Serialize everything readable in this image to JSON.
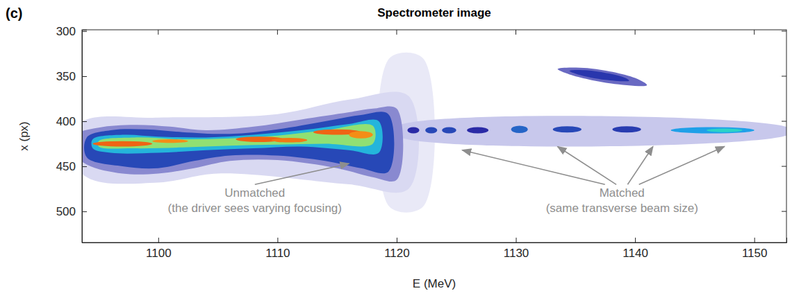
{
  "chart_data": {
    "type": "image",
    "panel": "(c)",
    "title": "Spectrometer image",
    "x_label": "E (MeV)",
    "y_label": "x (px)",
    "xlim": [
      1093.6,
      1152.7
    ],
    "xticks": [
      1100,
      1110,
      1120,
      1130,
      1140,
      1150
    ],
    "ylim": [
      534.5,
      298.5
    ],
    "yticks": [
      300,
      350,
      400,
      450,
      500
    ],
    "contours": [
      {
        "level": 0.04,
        "points": [
          [
            1119.4,
            330
          ],
          [
            1122.2,
            330
          ],
          [
            1122.2,
            495
          ],
          [
            1119.4,
            495
          ]
        ]
      },
      {
        "level": 0.07,
        "points": [
          [
            1092,
            420
          ],
          [
            1094,
            398
          ],
          [
            1100,
            396
          ],
          [
            1110,
            392
          ],
          [
            1116,
            376
          ],
          [
            1121,
            372
          ],
          [
            1121,
            475
          ],
          [
            1116,
            470
          ],
          [
            1105,
            458
          ],
          [
            1100,
            468
          ],
          [
            1094,
            462
          ]
        ]
      },
      {
        "level": 0.1,
        "points": [
          [
            1120,
            406
          ],
          [
            1153,
            408
          ],
          [
            1153,
            414
          ],
          [
            1120,
            416
          ]
        ]
      },
      {
        "level": 0.18,
        "points": [
          [
            1093,
            415
          ],
          [
            1095,
            407
          ],
          [
            1098,
            404
          ],
          [
            1101,
            406
          ],
          [
            1104,
            410
          ],
          [
            1108,
            406
          ],
          [
            1112,
            398
          ],
          [
            1116,
            390
          ],
          [
            1118,
            386
          ],
          [
            1120,
            386
          ],
          [
            1120,
            465
          ],
          [
            1118,
            462
          ],
          [
            1115,
            452
          ],
          [
            1110,
            443
          ],
          [
            1106,
            444
          ],
          [
            1103,
            452
          ],
          [
            1100,
            458
          ],
          [
            1097,
            458
          ],
          [
            1094,
            448
          ],
          [
            1092.5,
            430
          ]
        ]
      },
      {
        "level": 0.35,
        "points": [
          [
            1094,
            418
          ],
          [
            1096,
            410
          ],
          [
            1099,
            409
          ],
          [
            1102,
            412
          ],
          [
            1106,
            414
          ],
          [
            1110,
            409
          ],
          [
            1114,
            400
          ],
          [
            1117,
            393
          ],
          [
            1119.3,
            392
          ],
          [
            1119.3,
            456
          ],
          [
            1117,
            452
          ],
          [
            1114,
            444
          ],
          [
            1110,
            438
          ],
          [
            1106,
            438
          ],
          [
            1103,
            444
          ],
          [
            1100,
            452
          ],
          [
            1097,
            450
          ],
          [
            1094,
            440
          ]
        ]
      },
      {
        "level": 0.55,
        "points": [
          [
            1094.5,
            420
          ],
          [
            1097,
            415
          ],
          [
            1100,
            417
          ],
          [
            1104,
            418
          ],
          [
            1108,
            415
          ],
          [
            1112,
            410
          ],
          [
            1116,
            403
          ],
          [
            1118.5,
            400
          ],
          [
            1118.5,
            435
          ],
          [
            1116,
            432
          ],
          [
            1112,
            428
          ],
          [
            1108,
            430
          ],
          [
            1104,
            432
          ],
          [
            1100,
            435
          ],
          [
            1096,
            435
          ],
          [
            1094.5,
            430
          ]
        ]
      },
      {
        "level": 0.72,
        "points": [
          [
            1095,
            422
          ],
          [
            1098,
            418
          ],
          [
            1102,
            420
          ],
          [
            1106,
            419
          ],
          [
            1110,
            416
          ],
          [
            1114,
            410
          ],
          [
            1118,
            405
          ],
          [
            1118,
            425
          ],
          [
            1114,
            425
          ],
          [
            1110,
            426
          ],
          [
            1106,
            427
          ],
          [
            1102,
            429
          ],
          [
            1098,
            430
          ],
          [
            1095,
            428
          ]
        ]
      },
      {
        "level": 0.22,
        "points": [
          [
            1133.5,
            342
          ],
          [
            1136,
            341
          ],
          [
            1140,
            352
          ],
          [
            1141,
            360
          ],
          [
            1138,
            358
          ],
          [
            1134.5,
            348
          ]
        ]
      },
      {
        "level": 0.32,
        "points": [
          [
            1134.5,
            344
          ],
          [
            1136,
            343.5
          ],
          [
            1139,
            351
          ],
          [
            1139.5,
            355
          ],
          [
            1137.5,
            354
          ],
          [
            1135.2,
            348
          ]
        ]
      }
    ],
    "spots": [
      {
        "E": 1097,
        "x": 425,
        "dE": 2.5,
        "dx": 3,
        "level": 0.92
      },
      {
        "E": 1101,
        "x": 422,
        "dE": 1.5,
        "dx": 2,
        "level": 0.88
      },
      {
        "E": 1108.5,
        "x": 420,
        "dE": 2,
        "dx": 3,
        "level": 0.92
      },
      {
        "E": 1111,
        "x": 421,
        "dE": 1.5,
        "dx": 2.5,
        "level": 0.9
      },
      {
        "E": 1115,
        "x": 412,
        "dE": 2,
        "dx": 3,
        "level": 0.92
      },
      {
        "E": 1117,
        "x": 415,
        "dE": 1,
        "dx": 4,
        "level": 0.88
      },
      {
        "E": 1121.4,
        "x": 410,
        "dE": 0.5,
        "dx": 3.5,
        "level": 0.3
      },
      {
        "E": 1122.9,
        "x": 410,
        "dE": 0.5,
        "dx": 3.5,
        "level": 0.35
      },
      {
        "E": 1124.4,
        "x": 410,
        "dE": 0.6,
        "dx": 3.5,
        "level": 0.35
      },
      {
        "E": 1126.8,
        "x": 410,
        "dE": 0.9,
        "dx": 3.5,
        "level": 0.3
      },
      {
        "E": 1130.3,
        "x": 409,
        "dE": 0.7,
        "dx": 4,
        "level": 0.4
      },
      {
        "E": 1134.3,
        "x": 409,
        "dE": 1.2,
        "dx": 3.5,
        "level": 0.35
      },
      {
        "E": 1139.3,
        "x": 409,
        "dE": 1.2,
        "dx": 3.5,
        "level": 0.33
      },
      {
        "E": 1146.5,
        "x": 410,
        "dE": 3.5,
        "dx": 3.5,
        "level": 0.5
      },
      {
        "E": 1147.5,
        "x": 410,
        "dE": 1.5,
        "dx": 2,
        "level": 0.62
      }
    ],
    "annotations": [
      {
        "lines": [
          "Unmatched",
          "(the driver sees varying focusing)"
        ],
        "at": [
          1108.1,
          484
        ],
        "points_to": [
          [
            1116,
            447
          ]
        ]
      },
      {
        "lines": [
          "Matched",
          "(same transverse beam size)"
        ],
        "at": [
          1138.9,
          484
        ],
        "points_to": [
          [
            1125.5,
            432
          ],
          [
            1133.5,
            428
          ],
          [
            1141.5,
            428
          ],
          [
            1147.5,
            428
          ]
        ]
      }
    ]
  }
}
